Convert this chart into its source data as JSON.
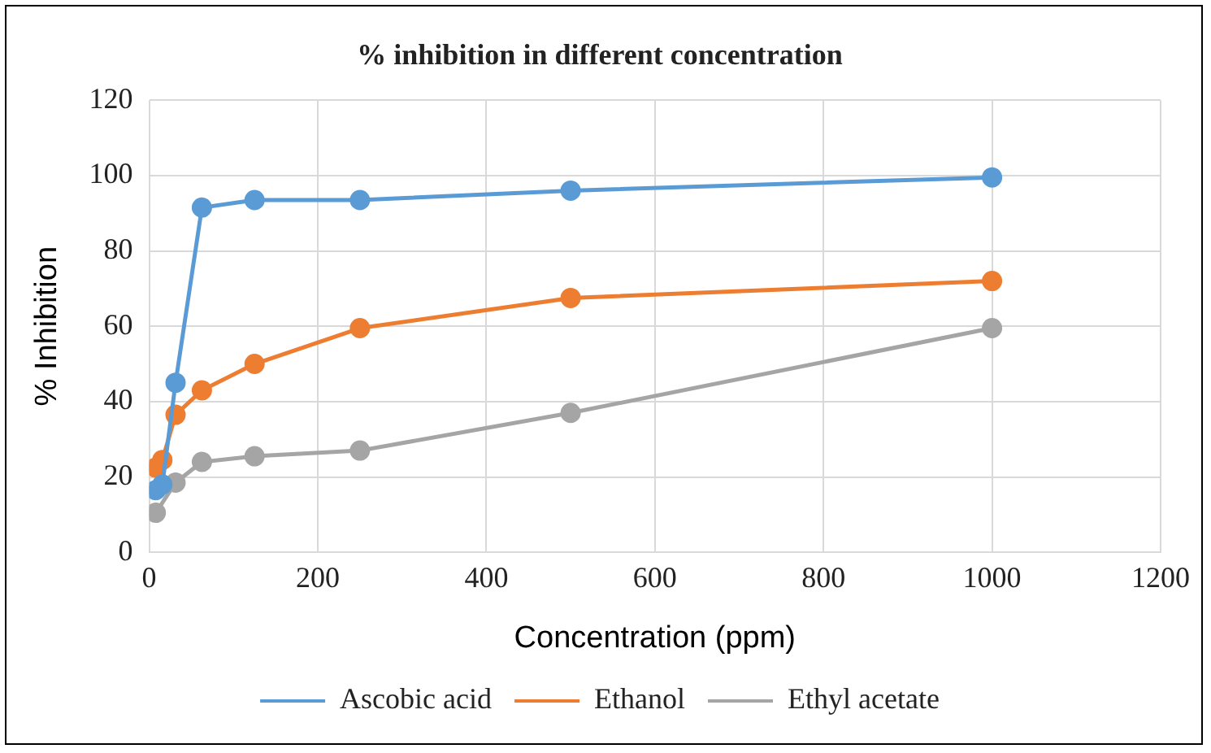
{
  "chart_data": {
    "type": "line",
    "title": "% inhibition in different concentration",
    "xlabel": "Concentration (ppm)",
    "ylabel": "% Inhibition",
    "xlim": [
      0,
      1200
    ],
    "xticks": [
      0,
      200,
      400,
      600,
      800,
      1000,
      1200
    ],
    "ylim": [
      0,
      120
    ],
    "yticks": [
      0,
      20,
      40,
      60,
      80,
      100,
      120
    ],
    "grid": true,
    "legend": "bottom",
    "marker": "circle",
    "line_style": "solid",
    "series": [
      {
        "name": "Ascobic acid",
        "color": "#5b9bd5",
        "x": [
          7.8,
          15.6,
          31.25,
          62.5,
          125,
          250,
          500,
          1000
        ],
        "values": [
          16.5,
          18,
          45,
          91.5,
          93.5,
          93.5,
          96,
          99.5
        ]
      },
      {
        "name": "Ethanol",
        "color": "#ed7d31",
        "x": [
          7.8,
          15.6,
          31.25,
          62.5,
          125,
          250,
          500,
          1000
        ],
        "values": [
          22.5,
          24.5,
          36.5,
          43,
          50,
          59.5,
          67.5,
          72
        ]
      },
      {
        "name": "Ethyl acetate",
        "color": "#a5a5a5",
        "x": [
          7.8,
          15.6,
          31.25,
          62.5,
          125,
          250,
          500,
          1000
        ],
        "values": [
          10.5,
          null,
          18.5,
          24,
          25.5,
          27,
          37,
          59.5
        ]
      }
    ]
  }
}
